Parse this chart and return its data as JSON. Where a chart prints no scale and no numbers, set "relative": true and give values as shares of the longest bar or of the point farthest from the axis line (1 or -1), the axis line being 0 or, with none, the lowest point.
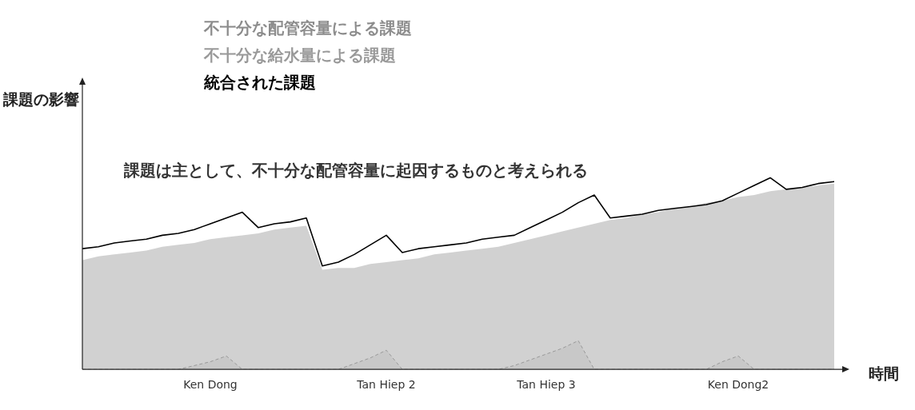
{
  "chart_data": {
    "type": "area",
    "relative": true,
    "ylabel": "課題の影響",
    "xlabel": "時間",
    "categories": [
      null,
      null,
      null,
      null,
      null,
      null,
      null,
      null,
      "Ken Dong",
      null,
      null,
      null,
      null,
      null,
      null,
      null,
      null,
      null,
      null,
      "Tan Hiep 2",
      null,
      null,
      null,
      null,
      null,
      null,
      null,
      null,
      null,
      "Tan Hiep 3",
      null,
      null,
      null,
      null,
      null,
      null,
      null,
      null,
      null,
      null,
      null,
      "Ken Dong2",
      null,
      null,
      null,
      null,
      null,
      null
    ],
    "series": [
      {
        "name": "不十分な配管容量による課題",
        "type": "area",
        "color": "#8c8c8c",
        "values": [
          0.57,
          0.59,
          0.6,
          0.61,
          0.62,
          0.64,
          0.65,
          0.66,
          0.68,
          0.69,
          0.7,
          0.71,
          0.73,
          0.74,
          0.75,
          0.52,
          0.53,
          0.53,
          0.55,
          0.56,
          0.57,
          0.58,
          0.6,
          0.61,
          0.62,
          0.63,
          0.64,
          0.66,
          0.68,
          0.7,
          0.72,
          0.74,
          0.76,
          0.78,
          0.79,
          0.81,
          0.82,
          0.84,
          0.85,
          0.87,
          0.88,
          0.9,
          0.91,
          0.93,
          0.94,
          0.95,
          0.96,
          0.97
        ]
      },
      {
        "name": "不十分な給水量による課題",
        "type": "area",
        "color": "#999999",
        "values": [
          0,
          0,
          0,
          0,
          0,
          0,
          0,
          0.02,
          0.04,
          0.07,
          0,
          0,
          0,
          0,
          0,
          0,
          0,
          0.03,
          0.06,
          0.1,
          0,
          0,
          0,
          0,
          0,
          0,
          0,
          0.02,
          0.05,
          0.08,
          0.11,
          0.15,
          0,
          0,
          0,
          0,
          0,
          0,
          0,
          0,
          0.04,
          0.07,
          0,
          0,
          0,
          0,
          0,
          0
        ]
      },
      {
        "name": "統合された課題",
        "type": "line",
        "color": "#000000",
        "values": [
          0.63,
          0.64,
          0.66,
          0.67,
          0.68,
          0.7,
          0.71,
          0.73,
          0.76,
          0.79,
          0.82,
          0.74,
          0.76,
          0.77,
          0.79,
          0.54,
          0.56,
          0.6,
          0.65,
          0.7,
          0.61,
          0.63,
          0.64,
          0.65,
          0.66,
          0.68,
          0.69,
          0.7,
          0.74,
          0.78,
          0.82,
          0.87,
          0.91,
          0.79,
          0.8,
          0.81,
          0.83,
          0.84,
          0.85,
          0.86,
          0.88,
          0.92,
          0.96,
          1,
          0.94,
          0.95,
          0.97,
          0.98
        ]
      }
    ],
    "legend": "top",
    "marker": "none",
    "grid": false,
    "tick_labels": "x",
    "annotations": [
      "課題は主として、不十分な配管容量に起因するものと考えられる"
    ]
  }
}
